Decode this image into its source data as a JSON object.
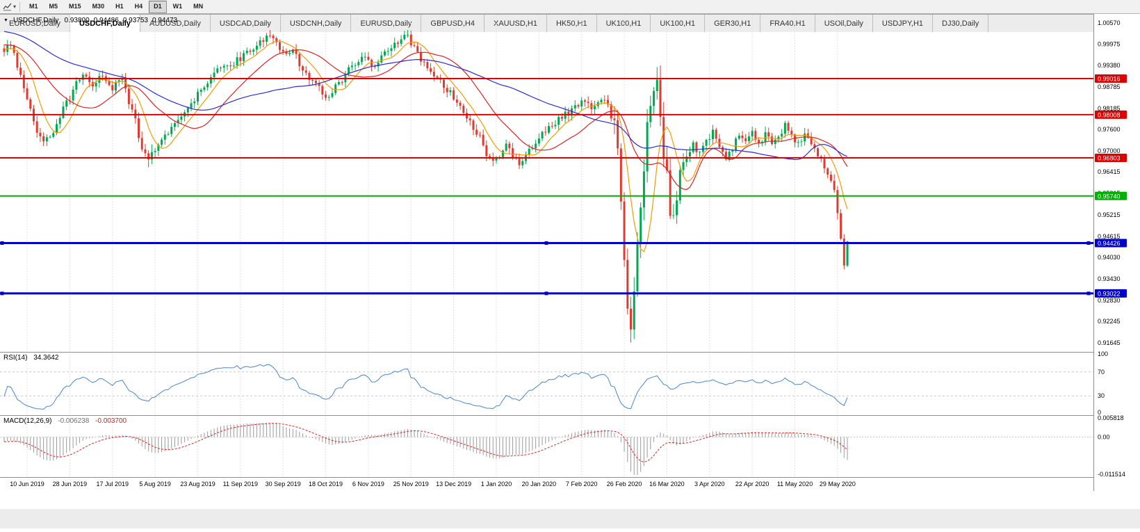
{
  "toolbar": {
    "timeframes": [
      "M1",
      "M5",
      "M15",
      "M30",
      "H1",
      "H4",
      "D1",
      "W1",
      "MN"
    ],
    "active_timeframe": "D1"
  },
  "chart_data": {
    "type": "candlestick",
    "symbol": "USDCHF",
    "period": "Daily",
    "title": "USDCHF,Daily",
    "current_bar": {
      "open": "0.93800",
      "high": "0.94486",
      "low": "0.93753",
      "close": "0.94473"
    },
    "price_axis_labels": [
      "1.00570",
      "0.99975",
      "0.99380",
      "0.98785",
      "0.98185",
      "0.97600",
      "0.97000",
      "0.96415",
      "0.95815",
      "0.95215",
      "0.94615",
      "0.94030",
      "0.93430",
      "0.92830",
      "0.92245",
      "0.91645"
    ],
    "price_axis_range": [
      0.9139,
      1.0082
    ],
    "date_ticks": [
      {
        "label": "10 Jun 2019",
        "i": 7
      },
      {
        "label": "28 Jun 2019",
        "i": 20
      },
      {
        "label": "17 Jul 2019",
        "i": 33
      },
      {
        "label": "5 Aug 2019",
        "i": 46
      },
      {
        "label": "23 Aug 2019",
        "i": 59
      },
      {
        "label": "11 Sep 2019",
        "i": 72
      },
      {
        "label": "30 Sep 2019",
        "i": 85
      },
      {
        "label": "18 Oct 2019",
        "i": 98
      },
      {
        "label": "6 Nov 2019",
        "i": 111
      },
      {
        "label": "25 Nov 2019",
        "i": 124
      },
      {
        "label": "13 Dec 2019",
        "i": 137
      },
      {
        "label": "1 Jan 2020",
        "i": 150
      },
      {
        "label": "20 Jan 2020",
        "i": 163
      },
      {
        "label": "7 Feb 2020",
        "i": 176
      },
      {
        "label": "26 Feb 2020",
        "i": 189
      },
      {
        "label": "16 Mar 2020",
        "i": 202
      },
      {
        "label": "3 Apr 2020",
        "i": 215
      },
      {
        "label": "22 Apr 2020",
        "i": 228
      },
      {
        "label": "11 May 2020",
        "i": 241
      },
      {
        "label": "29 May 2020",
        "i": 254
      }
    ],
    "candle_count": 258,
    "crash_low": 0.9165,
    "close_keyframes": [
      [
        0,
        0.9985
      ],
      [
        2,
        1.0
      ],
      [
        4,
        0.993
      ],
      [
        7,
        0.9845
      ],
      [
        10,
        0.976
      ],
      [
        12,
        0.9718
      ],
      [
        14,
        0.9742
      ],
      [
        16,
        0.9778
      ],
      [
        18,
        0.9815
      ],
      [
        21,
        0.9868
      ],
      [
        24,
        0.9918
      ],
      [
        27,
        0.9888
      ],
      [
        30,
        0.9908
      ],
      [
        33,
        0.9878
      ],
      [
        36,
        0.9898
      ],
      [
        38,
        0.9845
      ],
      [
        40,
        0.9782
      ],
      [
        42,
        0.97
      ],
      [
        44,
        0.9672
      ],
      [
        46,
        0.9712
      ],
      [
        49,
        0.9742
      ],
      [
        52,
        0.9772
      ],
      [
        55,
        0.9818
      ],
      [
        58,
        0.9848
      ],
      [
        61,
        0.9878
      ],
      [
        64,
        0.9915
      ],
      [
        67,
        0.9928
      ],
      [
        70,
        0.9948
      ],
      [
        73,
        0.9968
      ],
      [
        76,
        0.9985
      ],
      [
        79,
        1.0005
      ],
      [
        81,
        1.0022
      ],
      [
        83,
        0.9995
      ],
      [
        85,
        0.9972
      ],
      [
        88,
        0.999
      ],
      [
        90,
        0.9942
      ],
      [
        93,
        0.9902
      ],
      [
        96,
        0.9872
      ],
      [
        98,
        0.9842
      ],
      [
        100,
        0.9872
      ],
      [
        103,
        0.9902
      ],
      [
        106,
        0.9938
      ],
      [
        109,
        0.9968
      ],
      [
        112,
        0.994
      ],
      [
        115,
        0.9958
      ],
      [
        118,
        0.9988
      ],
      [
        120,
        1.0008
      ],
      [
        122,
        1.0028
      ],
      [
        124,
        1.0
      ],
      [
        127,
        0.9952
      ],
      [
        130,
        0.9922
      ],
      [
        133,
        0.9892
      ],
      [
        136,
        0.9862
      ],
      [
        139,
        0.9822
      ],
      [
        142,
        0.9782
      ],
      [
        145,
        0.9742
      ],
      [
        147,
        0.9695
      ],
      [
        149,
        0.9668
      ],
      [
        151,
        0.9692
      ],
      [
        153,
        0.9712
      ],
      [
        155,
        0.9682
      ],
      [
        157,
        0.9662
      ],
      [
        159,
        0.9692
      ],
      [
        161,
        0.9716
      ],
      [
        164,
        0.9742
      ],
      [
        167,
        0.9772
      ],
      [
        170,
        0.9792
      ],
      [
        173,
        0.9816
      ],
      [
        176,
        0.9842
      ],
      [
        179,
        0.9822
      ],
      [
        182,
        0.9852
      ],
      [
        184,
        0.9822
      ],
      [
        186,
        0.9762
      ],
      [
        187,
        0.9682
      ],
      [
        188,
        0.9562
      ],
      [
        189,
        0.9402
      ],
      [
        190,
        0.9252
      ],
      [
        191,
        0.9182
      ],
      [
        192,
        0.9302
      ],
      [
        193,
        0.9422
      ],
      [
        194,
        0.9562
      ],
      [
        195,
        0.9652
      ],
      [
        196,
        0.9752
      ],
      [
        197,
        0.9822
      ],
      [
        198,
        0.9872
      ],
      [
        199,
        0.9885
      ],
      [
        200,
        0.9802
      ],
      [
        201,
        0.9702
      ],
      [
        202,
        0.9622
      ],
      [
        203,
        0.9542
      ],
      [
        204,
        0.9492
      ],
      [
        205,
        0.9562
      ],
      [
        206,
        0.9622
      ],
      [
        207,
        0.9672
      ],
      [
        210,
        0.9722
      ],
      [
        212,
        0.9688
      ],
      [
        214,
        0.9722
      ],
      [
        216,
        0.9748
      ],
      [
        218,
        0.9702
      ],
      [
        220,
        0.9672
      ],
      [
        222,
        0.9712
      ],
      [
        224,
        0.9742
      ],
      [
        226,
        0.9718
      ],
      [
        228,
        0.9748
      ],
      [
        230,
        0.9722
      ],
      [
        232,
        0.9748
      ],
      [
        234,
        0.9722
      ],
      [
        236,
        0.9748
      ],
      [
        238,
        0.9768
      ],
      [
        240,
        0.9742
      ],
      [
        242,
        0.9722
      ],
      [
        244,
        0.9748
      ],
      [
        246,
        0.9722
      ],
      [
        248,
        0.9682
      ],
      [
        250,
        0.9652
      ],
      [
        252,
        0.9622
      ],
      [
        253,
        0.9582
      ],
      [
        254,
        0.9522
      ],
      [
        255,
        0.9462
      ],
      [
        256,
        0.938
      ],
      [
        257,
        0.9447
      ]
    ],
    "candle_colors": {
      "up": "#00a94f",
      "down": "#e23a2e"
    },
    "moving_averages": [
      {
        "period": 8,
        "color": "#f59b00"
      },
      {
        "period": 21,
        "color": "#dd2222"
      },
      {
        "period": 55,
        "color": "#2b2bd0"
      }
    ],
    "horizontal_lines": [
      {
        "value": 0.99016,
        "label": "0.99016",
        "color": "#dd0000",
        "width": 2,
        "handles": false
      },
      {
        "value": 0.98008,
        "label": "0.98008",
        "color": "#dd0000",
        "width": 2,
        "handles": false
      },
      {
        "value": 0.96803,
        "label": "0.96803",
        "color": "#dd0000",
        "width": 2,
        "handles": false
      },
      {
        "value": 0.9574,
        "label": "0.95740",
        "color": "#00b000",
        "width": 2,
        "handles": false
      },
      {
        "value": 0.94426,
        "label": "0.94426",
        "color": "#0000c8",
        "width": 3,
        "handles": true
      },
      {
        "value": 0.93022,
        "label": "0.93022",
        "color": "#0000c8",
        "width": 3,
        "handles": true
      }
    ],
    "indicators": [
      {
        "name": "RSI",
        "label": "RSI(14)",
        "value": "34.3642",
        "period": 14,
        "levels": [
          30,
          70
        ],
        "range": [
          0,
          100
        ],
        "axis_labels": [
          "100",
          "70",
          "30",
          "0"
        ],
        "color": "#4a86c8"
      },
      {
        "name": "MACD",
        "label": "MACD(12,26,9)",
        "value_main": "-0.006238",
        "value_signal": "-0.003700",
        "fast": 12,
        "slow": 26,
        "signal": 9,
        "axis_labels": [
          "0.005818",
          "0.00",
          "-0.011514"
        ],
        "range": [
          -0.011514,
          0.005818
        ],
        "hist_color": "#9a9a9a",
        "signal_color": "#dd2222"
      }
    ]
  },
  "tabs": {
    "items": [
      {
        "label": "EURUSD,Daily",
        "active": false
      },
      {
        "label": "USDCHF,Daily",
        "active": true
      },
      {
        "label": "AUDUSD,Daily",
        "active": false
      },
      {
        "label": "USDCAD,Daily",
        "active": false
      },
      {
        "label": "USDCNH,Daily",
        "active": false
      },
      {
        "label": "EURUSD,Daily",
        "active": false
      },
      {
        "label": "GBPUSD,H4",
        "active": false
      },
      {
        "label": "XAUUSD,H1",
        "active": false
      },
      {
        "label": "HK50,H1",
        "active": false
      },
      {
        "label": "UK100,H1",
        "active": false
      },
      {
        "label": "UK100,H1",
        "active": false
      },
      {
        "label": "GER30,H1",
        "active": false
      },
      {
        "label": "FRA40,H1",
        "active": false
      },
      {
        "label": "USOil,Daily",
        "active": false
      },
      {
        "label": "USDJPY,H1",
        "active": false
      },
      {
        "label": "DJ30,Daily",
        "active": false
      }
    ]
  }
}
